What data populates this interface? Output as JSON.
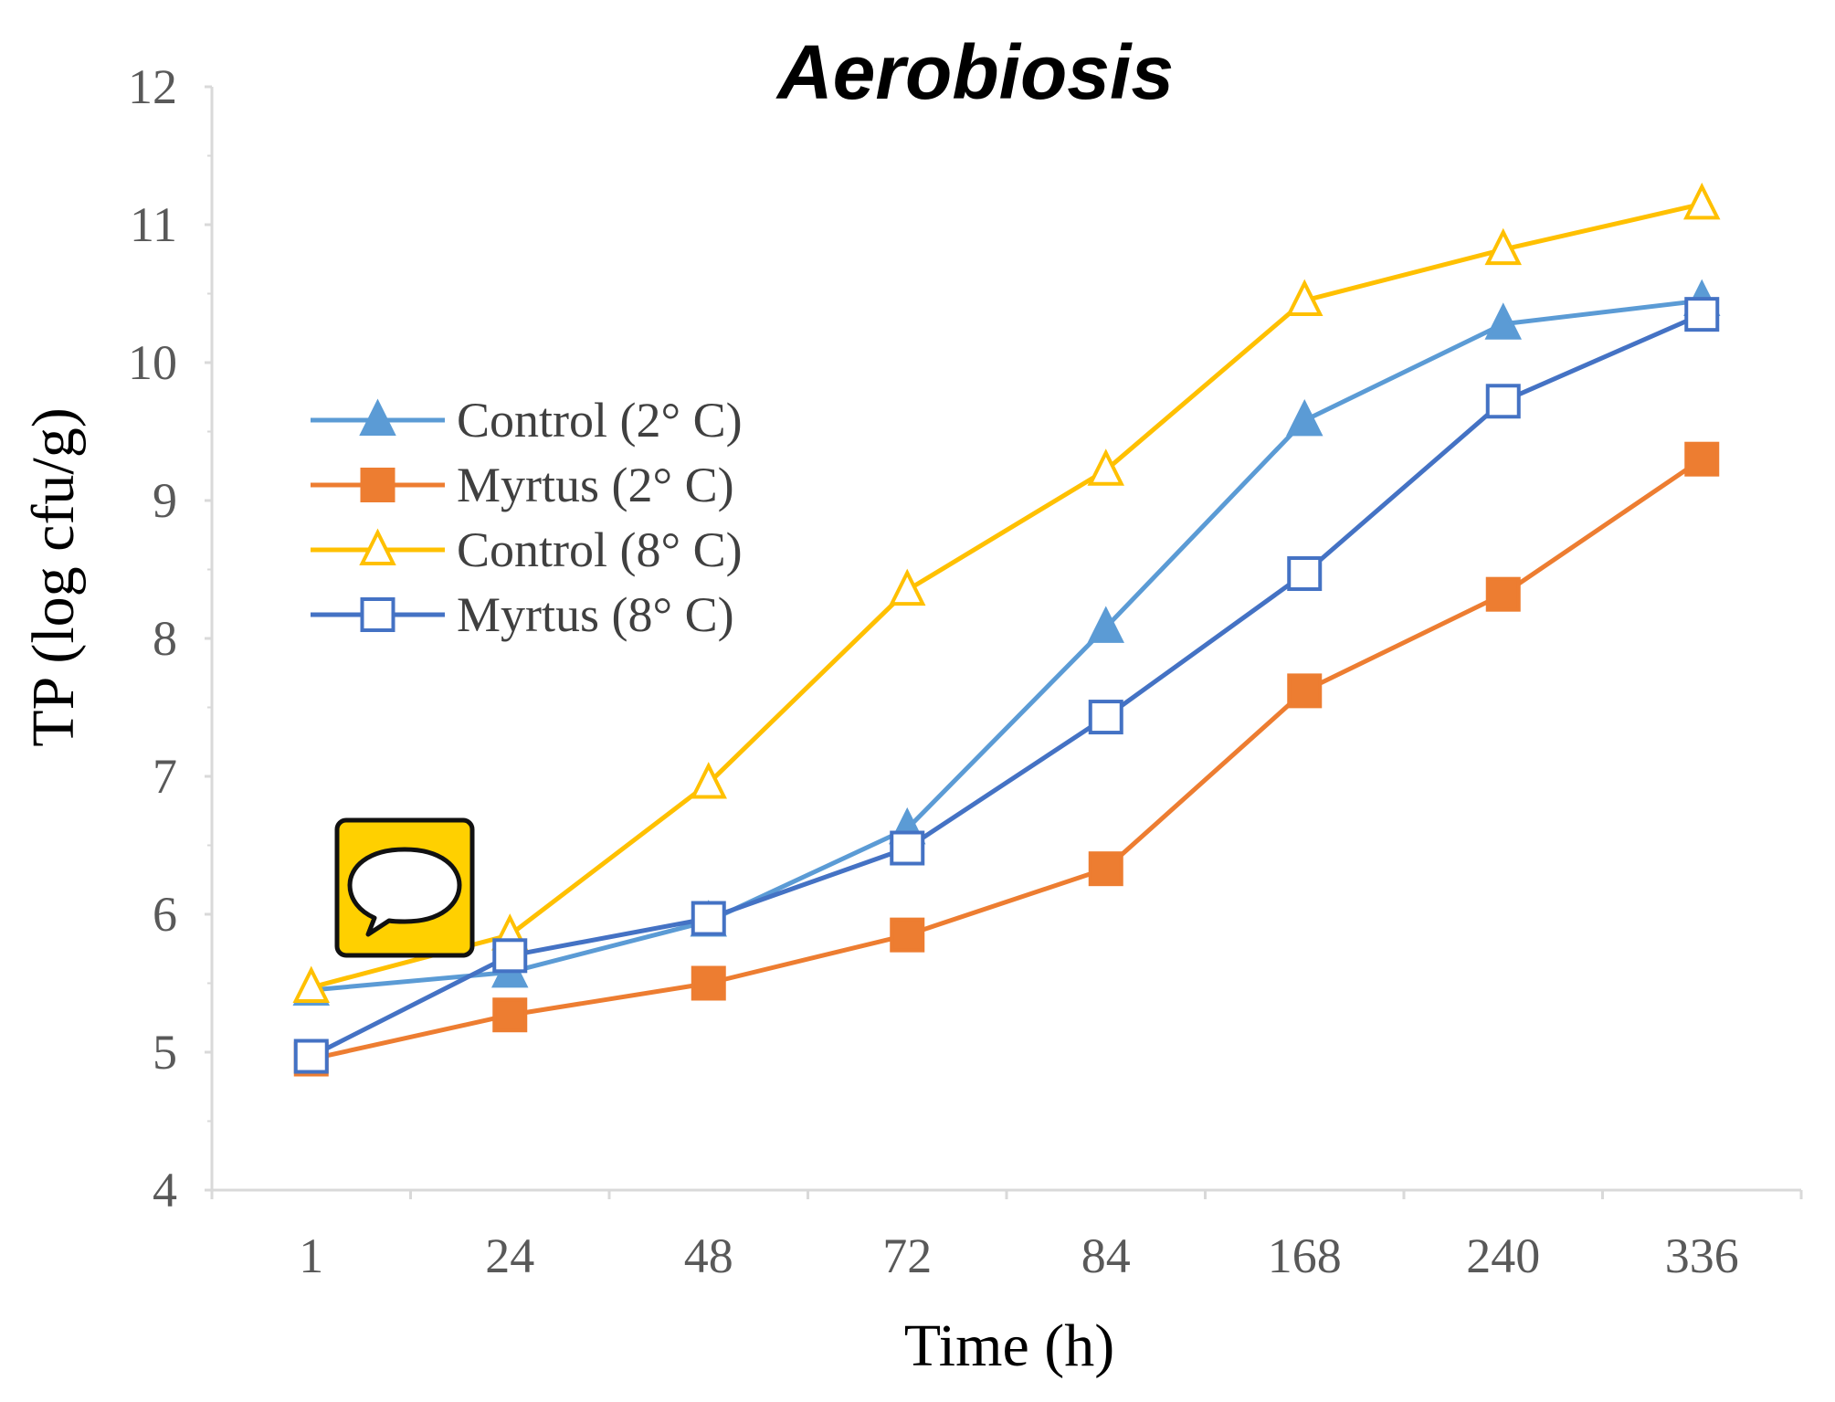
{
  "chart_data": {
    "type": "line",
    "title": "Aerobiosis",
    "xlabel": "Time (h)",
    "ylabel": "TP (log cfu/g)",
    "ylim": [
      4,
      12
    ],
    "yticks": [
      "4",
      "5",
      "6",
      "7",
      "8",
      "9",
      "10",
      "11",
      "12"
    ],
    "categories": [
      "1",
      "24",
      "48",
      "72",
      "84",
      "168",
      "240",
      "336"
    ],
    "grid": false,
    "legend_position": "left-middle",
    "series": [
      {
        "name": "Control (2° C)",
        "marker": "filled-triangle",
        "color": "#5b9bd5",
        "values": [
          5.45,
          5.58,
          5.95,
          6.62,
          8.08,
          9.58,
          10.28,
          10.45
        ]
      },
      {
        "name": "Myrtus (2° C)",
        "marker": "filled-square",
        "color": "#ed7d31",
        "values": [
          4.95,
          5.27,
          5.5,
          5.85,
          6.33,
          7.62,
          8.32,
          9.3
        ]
      },
      {
        "name": "Control (8° C)",
        "marker": "open-triangle",
        "color": "#ffc000",
        "values": [
          5.47,
          5.85,
          6.95,
          8.35,
          9.22,
          10.45,
          10.82,
          11.15
        ]
      },
      {
        "name": "Myrtus (8° C)",
        "marker": "open-square",
        "color": "#4472c4",
        "values": [
          4.97,
          5.7,
          5.97,
          6.48,
          7.43,
          8.47,
          9.72,
          10.35
        ]
      }
    ]
  },
  "overlay": {
    "icon": "speech-bubble-icon",
    "bg_color": "#ffd000"
  }
}
